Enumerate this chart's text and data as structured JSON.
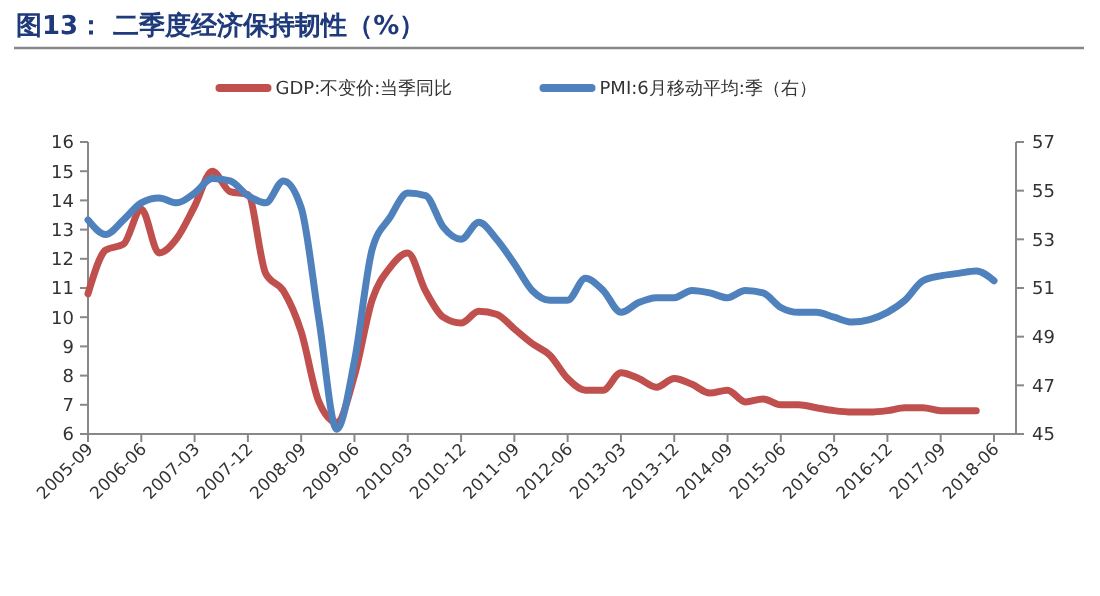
{
  "chart_data": {
    "type": "line",
    "title": "图13：  二季度经济保持韧性（%）",
    "categories": [
      "2005-09",
      null,
      null,
      "2006-06",
      null,
      null,
      "2007-03",
      null,
      null,
      "2007-12",
      null,
      null,
      "2008-09",
      null,
      null,
      "2009-06",
      null,
      null,
      "2010-03",
      null,
      null,
      "2010-12",
      null,
      null,
      "2011-09",
      null,
      null,
      "2012-06",
      null,
      null,
      "2013-03",
      null,
      null,
      "2013-12",
      null,
      null,
      "2014-09",
      null,
      null,
      "2015-06",
      null,
      null,
      "2016-03",
      null,
      null,
      "2016-12",
      null,
      null,
      "2017-09",
      null,
      null,
      "2018-06"
    ],
    "series": [
      {
        "name": "GDP:不变价:当季同比",
        "color": "#c0504d",
        "values": [
          10.8,
          12.3,
          12.5,
          13.7,
          12.2,
          12.7,
          13.8,
          15.0,
          14.3,
          14.2,
          11.5,
          10.9,
          9.5,
          7.1,
          6.4,
          8.0,
          10.6,
          11.7,
          12.2,
          10.9,
          10.0,
          9.8,
          10.2,
          10.1,
          9.6,
          9.1,
          8.7,
          7.9,
          7.5,
          7.5,
          8.1,
          7.9,
          7.6,
          7.9,
          7.7,
          7.4,
          7.5,
          7.1,
          7.2,
          7.0,
          7.0,
          6.9,
          6.8,
          6.75,
          6.75,
          6.8,
          6.9,
          6.9,
          6.8,
          6.8,
          6.8,
          null
        ]
      },
      {
        "name": "PMI:6月移动平均:季（右）",
        "color": "#4f81bd",
        "axis": "y2",
        "values": [
          53.8,
          53.2,
          53.8,
          54.5,
          54.7,
          54.5,
          54.9,
          55.5,
          55.4,
          54.8,
          54.5,
          55.4,
          54.3,
          49.7,
          45.2,
          48.0,
          52.6,
          53.9,
          54.9,
          54.8,
          53.5,
          53.0,
          53.7,
          53.0,
          52.0,
          50.9,
          50.5,
          50.5,
          51.4,
          50.9,
          50.0,
          50.4,
          50.6,
          50.6,
          50.9,
          50.8,
          50.6,
          50.9,
          50.8,
          50.2,
          50.0,
          50.0,
          49.8,
          49.6,
          49.7,
          50.0,
          50.5,
          51.3,
          51.5,
          51.6,
          51.7,
          51.3
        ]
      }
    ],
    "ylim": [
      6,
      16
    ],
    "yticks": [
      6,
      7,
      8,
      9,
      10,
      11,
      12,
      13,
      14,
      15,
      16
    ],
    "y2lim": [
      45,
      57
    ],
    "y2ticks": [
      45,
      47,
      49,
      51,
      53,
      55,
      57
    ],
    "grid": false,
    "legend": "top"
  }
}
